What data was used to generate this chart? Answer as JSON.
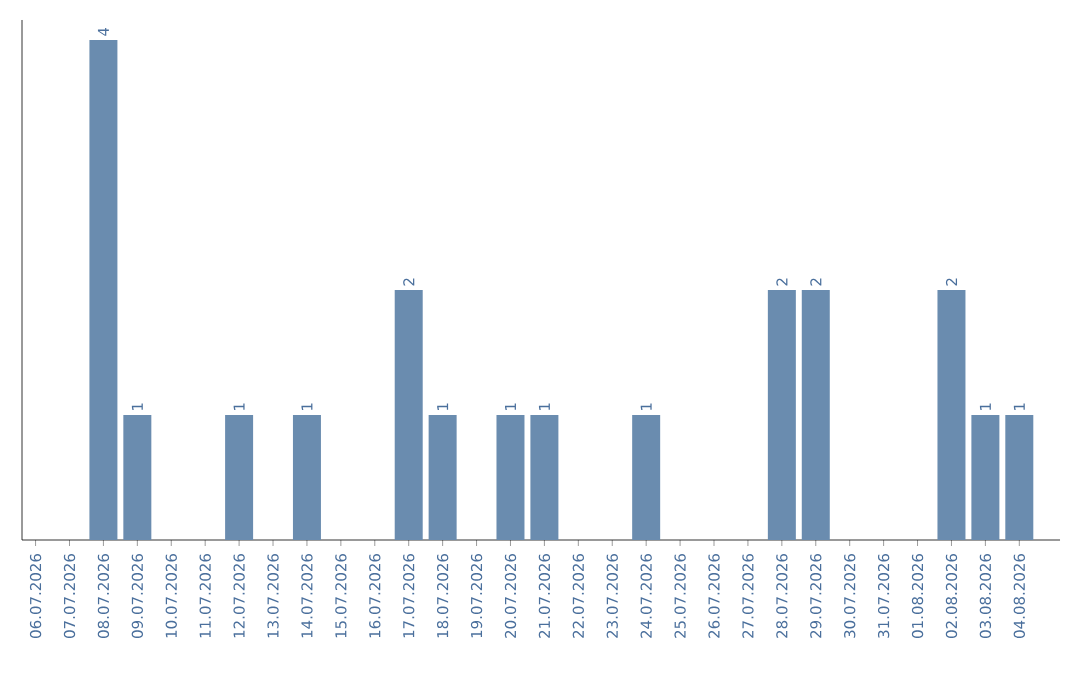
{
  "chart_data": {
    "type": "bar",
    "categories": [
      "06.07.2026",
      "07.07.2026",
      "08.07.2026",
      "09.07.2026",
      "10.07.2026",
      "11.07.2026",
      "12.07.2026",
      "13.07.2026",
      "14.07.2026",
      "15.07.2026",
      "16.07.2026",
      "17.07.2026",
      "18.07.2026",
      "19.07.2026",
      "20.07.2026",
      "21.07.2026",
      "22.07.2026",
      "23.07.2026",
      "24.07.2026",
      "25.07.2026",
      "26.07.2026",
      "27.07.2026",
      "28.07.2026",
      "29.07.2026",
      "30.07.2026",
      "31.07.2026",
      "01.08.2026",
      "02.08.2026",
      "03.08.2026",
      "04.08.2026"
    ],
    "values": [
      0,
      0,
      4,
      1,
      0,
      0,
      1,
      0,
      1,
      0,
      0,
      2,
      1,
      0,
      1,
      1,
      0,
      0,
      1,
      0,
      0,
      0,
      2,
      2,
      0,
      0,
      0,
      2,
      1,
      1
    ],
    "value_labels": [
      null,
      null,
      "4",
      "1",
      null,
      null,
      "1",
      null,
      "1",
      null,
      null,
      "2",
      "1",
      null,
      "1",
      "1",
      null,
      null,
      "1",
      null,
      null,
      null,
      "2",
      "2",
      null,
      null,
      null,
      "2",
      "1",
      "1"
    ],
    "color": "#6a8caf",
    "tick_labels": "x"
  }
}
